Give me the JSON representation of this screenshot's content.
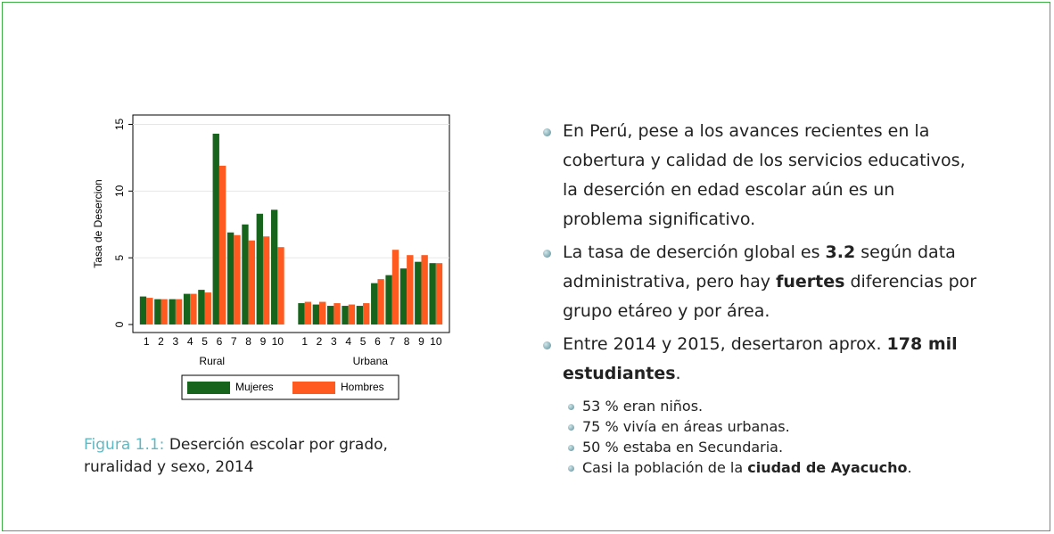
{
  "chart_data": {
    "type": "bar",
    "ylabel": "Tasa de Desercion",
    "categories": [
      "1",
      "2",
      "3",
      "4",
      "5",
      "6",
      "7",
      "8",
      "9",
      "10",
      "1",
      "2",
      "3",
      "4",
      "5",
      "6",
      "7",
      "8",
      "9",
      "10"
    ],
    "group_labels": [
      "Rural",
      "Urbana"
    ],
    "series": [
      {
        "name": "Mujeres",
        "color": "#17641c",
        "values": [
          2.1,
          1.9,
          1.9,
          2.3,
          2.6,
          14.3,
          6.9,
          7.5,
          8.3,
          8.6,
          1.6,
          1.5,
          1.4,
          1.4,
          1.4,
          3.1,
          3.7,
          4.2,
          4.7,
          4.6
        ]
      },
      {
        "name": "Hombres",
        "color": "#ff5a1f",
        "values": [
          2.0,
          1.9,
          1.9,
          2.3,
          2.4,
          11.9,
          6.7,
          6.3,
          6.6,
          5.8,
          1.7,
          1.7,
          1.6,
          1.5,
          1.6,
          3.4,
          5.6,
          5.2,
          5.2,
          4.6
        ]
      }
    ],
    "ylim": [
      -0.6,
      15.7
    ],
    "yticks": [
      0,
      5,
      10,
      15
    ],
    "grid": true,
    "legend": "bottom"
  },
  "caption": {
    "label": "Figura 1.1:",
    "text": "Deserción escolar por grado, ruralidad y sexo, 2014"
  },
  "bullets": [
    [
      "En Perú, pese a los avances recientes en la cobertura y calidad de los servicios educativos, la deserción en edad escolar aún es un problema significativo."
    ],
    [
      "La tasa de deserción global es ",
      "3.2",
      " según data administrativa, pero hay ",
      "fuertes",
      " diferencias por grupo etáreo y por área."
    ],
    [
      "Entre 2014 y 2015, desertaron aprox. ",
      "178 mil estudiantes",
      "."
    ]
  ],
  "sub_bullets": [
    [
      "53 % eran niños."
    ],
    [
      "75 % vivía en áreas urbanas."
    ],
    [
      "50 % estaba en Secundaria."
    ],
    [
      "Casi la población de la ",
      "ciudad de Ayacucho",
      "."
    ]
  ]
}
